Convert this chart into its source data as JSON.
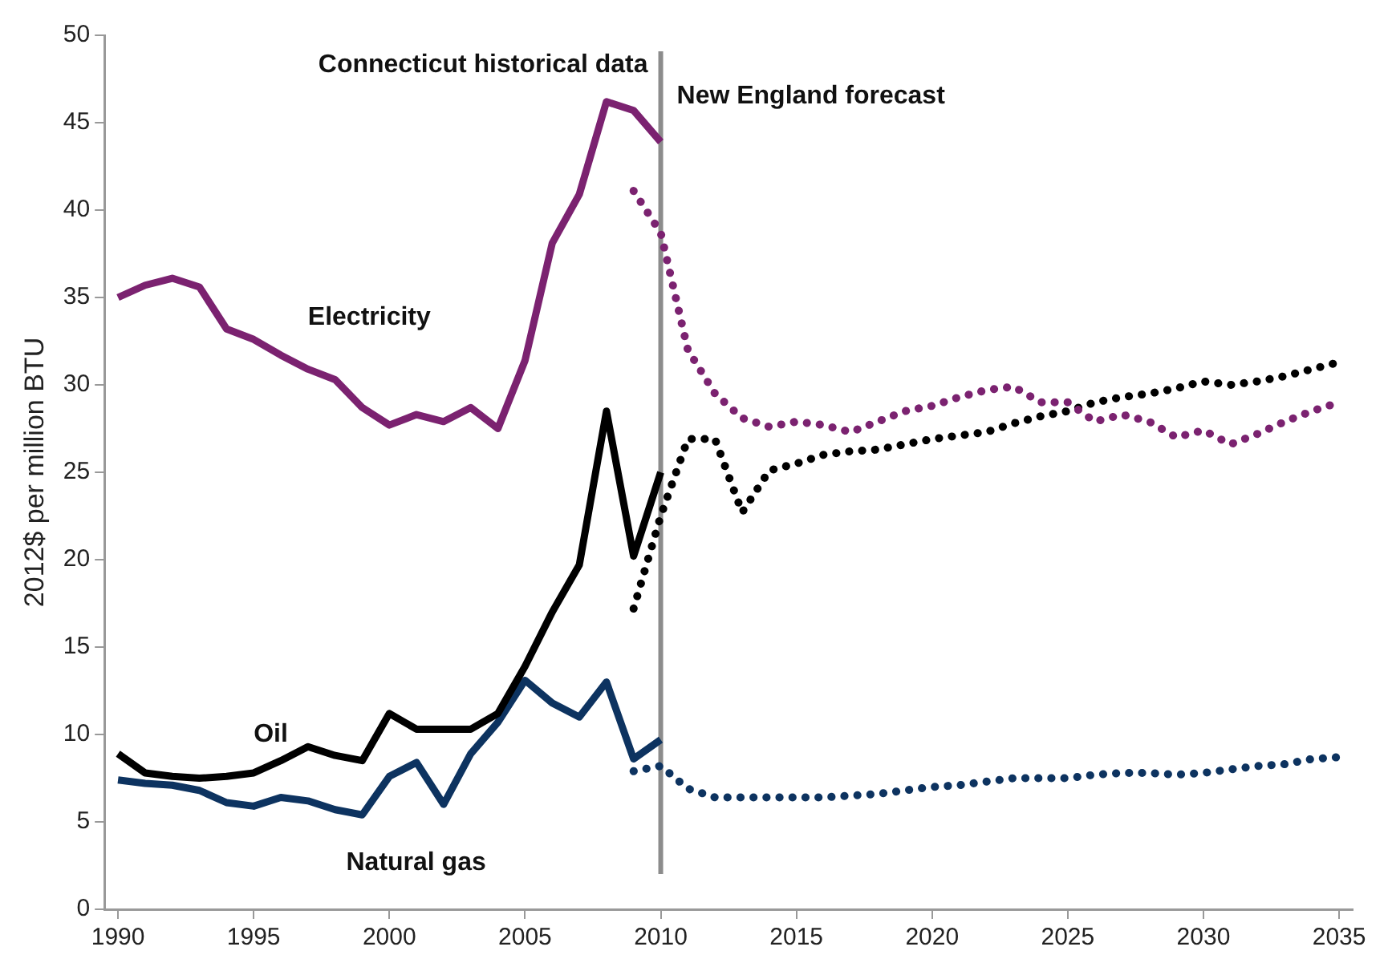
{
  "chart_data": {
    "type": "line",
    "ylabel": "2012$ per million BTU",
    "xlim": [
      1989.5,
      2035.5
    ],
    "xticks": [
      1990,
      1995,
      2000,
      2005,
      2010,
      2015,
      2020,
      2025,
      2030,
      2035
    ],
    "ylim": [
      0,
      50
    ],
    "yticks": [
      0,
      5,
      10,
      15,
      20,
      25,
      30,
      35,
      40,
      45,
      50
    ],
    "grid": false,
    "legend": false,
    "marker": "none",
    "series": [
      {
        "name": "Electricity",
        "color": "#7b2270",
        "line_style": "solid",
        "x": [
          1990,
          1991,
          1992,
          1993,
          1994,
          1995,
          1996,
          1997,
          1998,
          1999,
          2000,
          2001,
          2002,
          2003,
          2004,
          2005,
          2006,
          2007,
          2008,
          2009,
          2010
        ],
        "values": [
          35.0,
          35.7,
          36.1,
          35.6,
          33.2,
          32.6,
          31.7,
          30.9,
          30.3,
          28.7,
          27.7,
          28.3,
          27.9,
          28.7,
          27.5,
          31.4,
          38.1,
          40.9,
          46.2,
          45.7,
          43.9
        ]
      },
      {
        "color": "#7b2270",
        "line_style": "dotted",
        "x": [
          2009,
          2010,
          2011,
          2012,
          2013,
          2014,
          2015,
          2016,
          2017,
          2018,
          2019,
          2020,
          2021,
          2022,
          2023,
          2024,
          2025,
          2026,
          2027,
          2028,
          2029,
          2030,
          2031,
          2032,
          2033,
          2034,
          2035
        ],
        "values": [
          41.1,
          38.7,
          32.0,
          29.5,
          28.1,
          27.6,
          27.9,
          27.7,
          27.3,
          27.9,
          28.5,
          28.8,
          29.3,
          29.7,
          29.9,
          29.0,
          29.0,
          27.9,
          28.3,
          27.9,
          27.0,
          27.4,
          26.6,
          27.2,
          27.9,
          28.5,
          29.0
        ]
      },
      {
        "name": "Oil",
        "color": "#000000",
        "line_style": "solid",
        "x": [
          1990,
          1991,
          1992,
          1993,
          1994,
          1995,
          1996,
          1997,
          1998,
          1999,
          2000,
          2001,
          2002,
          2003,
          2004,
          2005,
          2006,
          2007,
          2008,
          2009,
          2010
        ],
        "values": [
          8.9,
          7.8,
          7.6,
          7.5,
          7.6,
          7.8,
          8.5,
          9.3,
          8.8,
          8.5,
          11.2,
          10.3,
          10.3,
          10.3,
          11.2,
          13.9,
          17.0,
          19.7,
          28.5,
          20.2,
          25.0
        ]
      },
      {
        "color": "#000000",
        "line_style": "dotted",
        "x": [
          2009,
          2010,
          2011,
          2012,
          2013,
          2014,
          2015,
          2016,
          2017,
          2018,
          2019,
          2020,
          2021,
          2022,
          2023,
          2024,
          2025,
          2026,
          2027,
          2028,
          2029,
          2030,
          2031,
          2032,
          2033,
          2034,
          2035
        ],
        "values": [
          17.2,
          22.5,
          26.9,
          26.9,
          22.7,
          25.1,
          25.5,
          26.0,
          26.2,
          26.3,
          26.6,
          26.9,
          27.1,
          27.3,
          27.8,
          28.2,
          28.5,
          29.0,
          29.3,
          29.5,
          29.8,
          30.2,
          30.0,
          30.2,
          30.5,
          30.9,
          31.3
        ]
      },
      {
        "name": "Natural gas",
        "color": "#0d3360",
        "line_style": "solid",
        "x": [
          1990,
          1991,
          1992,
          1993,
          1994,
          1995,
          1996,
          1997,
          1998,
          1999,
          2000,
          2001,
          2002,
          2003,
          2004,
          2005,
          2006,
          2007,
          2008,
          2009,
          2010
        ],
        "values": [
          7.4,
          7.2,
          7.1,
          6.8,
          6.1,
          5.9,
          6.4,
          6.2,
          5.7,
          5.4,
          7.6,
          8.4,
          6.0,
          8.9,
          10.7,
          13.1,
          11.8,
          11.0,
          13.0,
          8.6,
          9.7
        ]
      },
      {
        "color": "#0d3360",
        "line_style": "dotted",
        "x": [
          2009,
          2010,
          2011,
          2012,
          2013,
          2014,
          2015,
          2016,
          2017,
          2018,
          2019,
          2020,
          2021,
          2022,
          2023,
          2024,
          2025,
          2026,
          2027,
          2028,
          2029,
          2030,
          2031,
          2032,
          2033,
          2034,
          2035
        ],
        "values": [
          7.9,
          8.2,
          6.9,
          6.4,
          6.4,
          6.4,
          6.4,
          6.4,
          6.5,
          6.6,
          6.8,
          7.0,
          7.1,
          7.3,
          7.5,
          7.5,
          7.5,
          7.7,
          7.8,
          7.8,
          7.7,
          7.8,
          8.0,
          8.2,
          8.3,
          8.6,
          8.7
        ]
      }
    ],
    "ref_lines": [
      {
        "axis": "x",
        "value": 2010,
        "color": "#8c8c8c",
        "line_style": "solid"
      }
    ],
    "annotations": [
      {
        "text": "Connecticut historical data",
        "x": 2010,
        "y": 48.3
      },
      {
        "text": "New England forecast",
        "x": 2010,
        "y": 46.5
      }
    ]
  }
}
